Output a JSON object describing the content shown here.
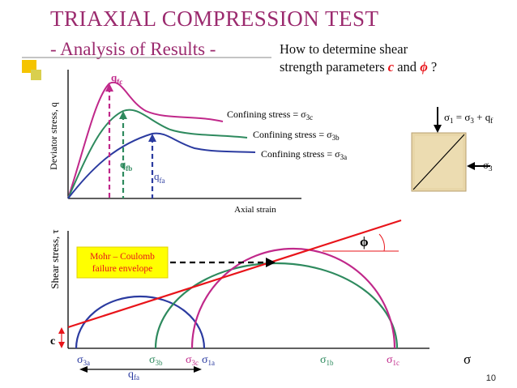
{
  "header": {
    "title": "TRIAXIAL COMPRESSION TEST",
    "subtitle": "- Analysis of Results -",
    "question_line1": "How to determine shear",
    "question_line2_pre": "strength parameters ",
    "question_c": "c",
    "question_and": " and ",
    "question_phi": "ϕ",
    "question_end": " ?"
  },
  "top_chart": {
    "ylabel": "Deviator stress, q",
    "xlabel": "Axial strain",
    "peaks": {
      "c": "q",
      "c_sub": "fc",
      "b": "q",
      "b_sub": "fb",
      "a": "q",
      "a_sub": "fa"
    },
    "curves": [
      {
        "label": "Confining stress = σ",
        "sub": "3c",
        "color": "#c0288a"
      },
      {
        "label": "Confining stress = σ",
        "sub": "3b",
        "color": "#2e8a5e"
      },
      {
        "label": "Confining stress = σ",
        "sub": "3a",
        "color": "#2b3ba0"
      }
    ]
  },
  "specimen": {
    "sigma1": "σ",
    "sigma1_sub": "1",
    "sigma1_rest_a": " = σ",
    "sigma1_rest_sub": "3",
    "sigma1_rest_b": " + q",
    "sigma1_rest_sub2": "f",
    "sigma3": "σ",
    "sigma3_sub": "3"
  },
  "bottom_chart": {
    "ylabel": "Shear stress, τ",
    "xlabel": "σ",
    "c_label": "c",
    "phi_label": "ϕ",
    "envelope_box_line1": "Mohr – Coulomb",
    "envelope_box_line2": "failure envelope",
    "qfa": "q",
    "qfa_sub": "fa",
    "ticks": [
      {
        "main": "σ",
        "sub": "3a",
        "color": "#2b3ba0"
      },
      {
        "main": "σ",
        "sub": "3b",
        "color": "#2e8a5e"
      },
      {
        "main": "σ",
        "sub": "3c",
        "color": "#c0288a"
      },
      {
        "main": "σ",
        "sub": "1a",
        "color": "#2b3ba0"
      },
      {
        "main": "σ",
        "sub": "1b",
        "color": "#2e8a5e"
      },
      {
        "main": "σ",
        "sub": "1c",
        "color": "#c0288a"
      }
    ]
  },
  "colors": {
    "title": "#9b2a6e",
    "accent_bar": "#f5c400",
    "envelope": "#e8141a",
    "circle_a": "#2b3ba0",
    "circle_b": "#2e8a5e",
    "circle_c": "#c0288a",
    "box_fill": "#ffff00"
  },
  "slide_number": "10"
}
